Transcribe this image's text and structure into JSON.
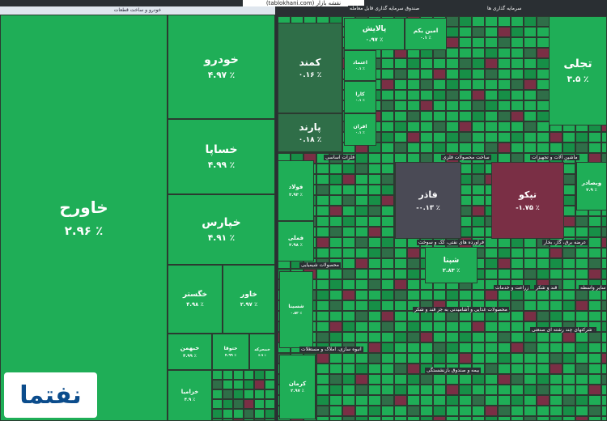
{
  "header": {
    "title": "(tablokhani.com) نقشه بازار"
  },
  "left_panel": {
    "title": "خودرو و ساخت قطعات",
    "tiles": [
      {
        "label": "خاورح",
        "change": "۲.۹۶ ٪"
      },
      {
        "label": "خودرو",
        "change": "۴.۹۷ ٪"
      },
      {
        "label": "خساپا",
        "change": "۴.۹۹ ٪"
      },
      {
        "label": "خپارس",
        "change": "۴.۹۱ ٪"
      },
      {
        "label": "خگستر",
        "change": "۴.۹۸ ٪"
      },
      {
        "label": "خاور",
        "change": "۲.۹۷ ٪"
      },
      {
        "label": "خبهمن",
        "change": "۴.۹۹ ٪"
      },
      {
        "label": "ختوقا",
        "change": "۴.۹۹ ٪"
      },
      {
        "label": "خزامیا",
        "change": "۴.۹ ٪"
      },
      {
        "label": "خمحرکه",
        "change": "۴.۹ ٪"
      }
    ]
  },
  "right_panel": {
    "sectors": [
      "صندوق سرمایه گذاری قابل معامله",
      "سرمایه گذاری ها",
      "فلزات اساسی",
      "ساخت محصولات فلزی",
      "ماشین آلات و تجهیزات",
      "محصولات شیمیایی",
      "فراورده های نفتی، کک و سوخت",
      "عرضه برق، گاز، بخار",
      "محصولات غذایی و آشامیدنی به جز قند و شکر",
      "زراعت و خدمات",
      "قند و شکر",
      "سایر واسطه",
      "انبوه سازی، املاک و مستغلات",
      "بیمه و صندوق بازنشستگی",
      "حمل و نقل",
      "شرکتهای چند رشته ای صنعتی"
    ],
    "tiles": [
      {
        "label": "کمند",
        "change": "۰.۱۶ ٪"
      },
      {
        "label": "پارند",
        "change": "۰.۱۸ ٪"
      },
      {
        "label": "پالایش",
        "change": "۰.۹۷ ٪"
      },
      {
        "label": "امین یکم",
        "change": "۰.۱ ٪"
      },
      {
        "label": "اعتماد",
        "change": "۰.۱ ٪"
      },
      {
        "label": "کارا",
        "change": "۰.۱ ٪"
      },
      {
        "label": "افران",
        "change": "۰.۱ ٪"
      },
      {
        "label": "تجلی",
        "change": "۳.۵ ٪"
      },
      {
        "label": "فولاد",
        "change": "۲.۹۳ ٪"
      },
      {
        "label": "فملی",
        "change": "۲.۹۸ ٪"
      },
      {
        "label": "فاذر",
        "change": "-۰.۱۳ ٪"
      },
      {
        "label": "تپکو",
        "change": "-۱.۷۵ ٪"
      },
      {
        "label": "شپنا",
        "change": "۲.۸۳ ٪"
      },
      {
        "label": "شسینا",
        "change": "۰.۵۲ ٪"
      },
      {
        "label": "وبصادر",
        "change": "۲.۹ ٪"
      },
      {
        "label": "کرمان",
        "change": "۲.۹۷ ٪"
      }
    ]
  },
  "watermark": {
    "text": "نفتما"
  }
}
